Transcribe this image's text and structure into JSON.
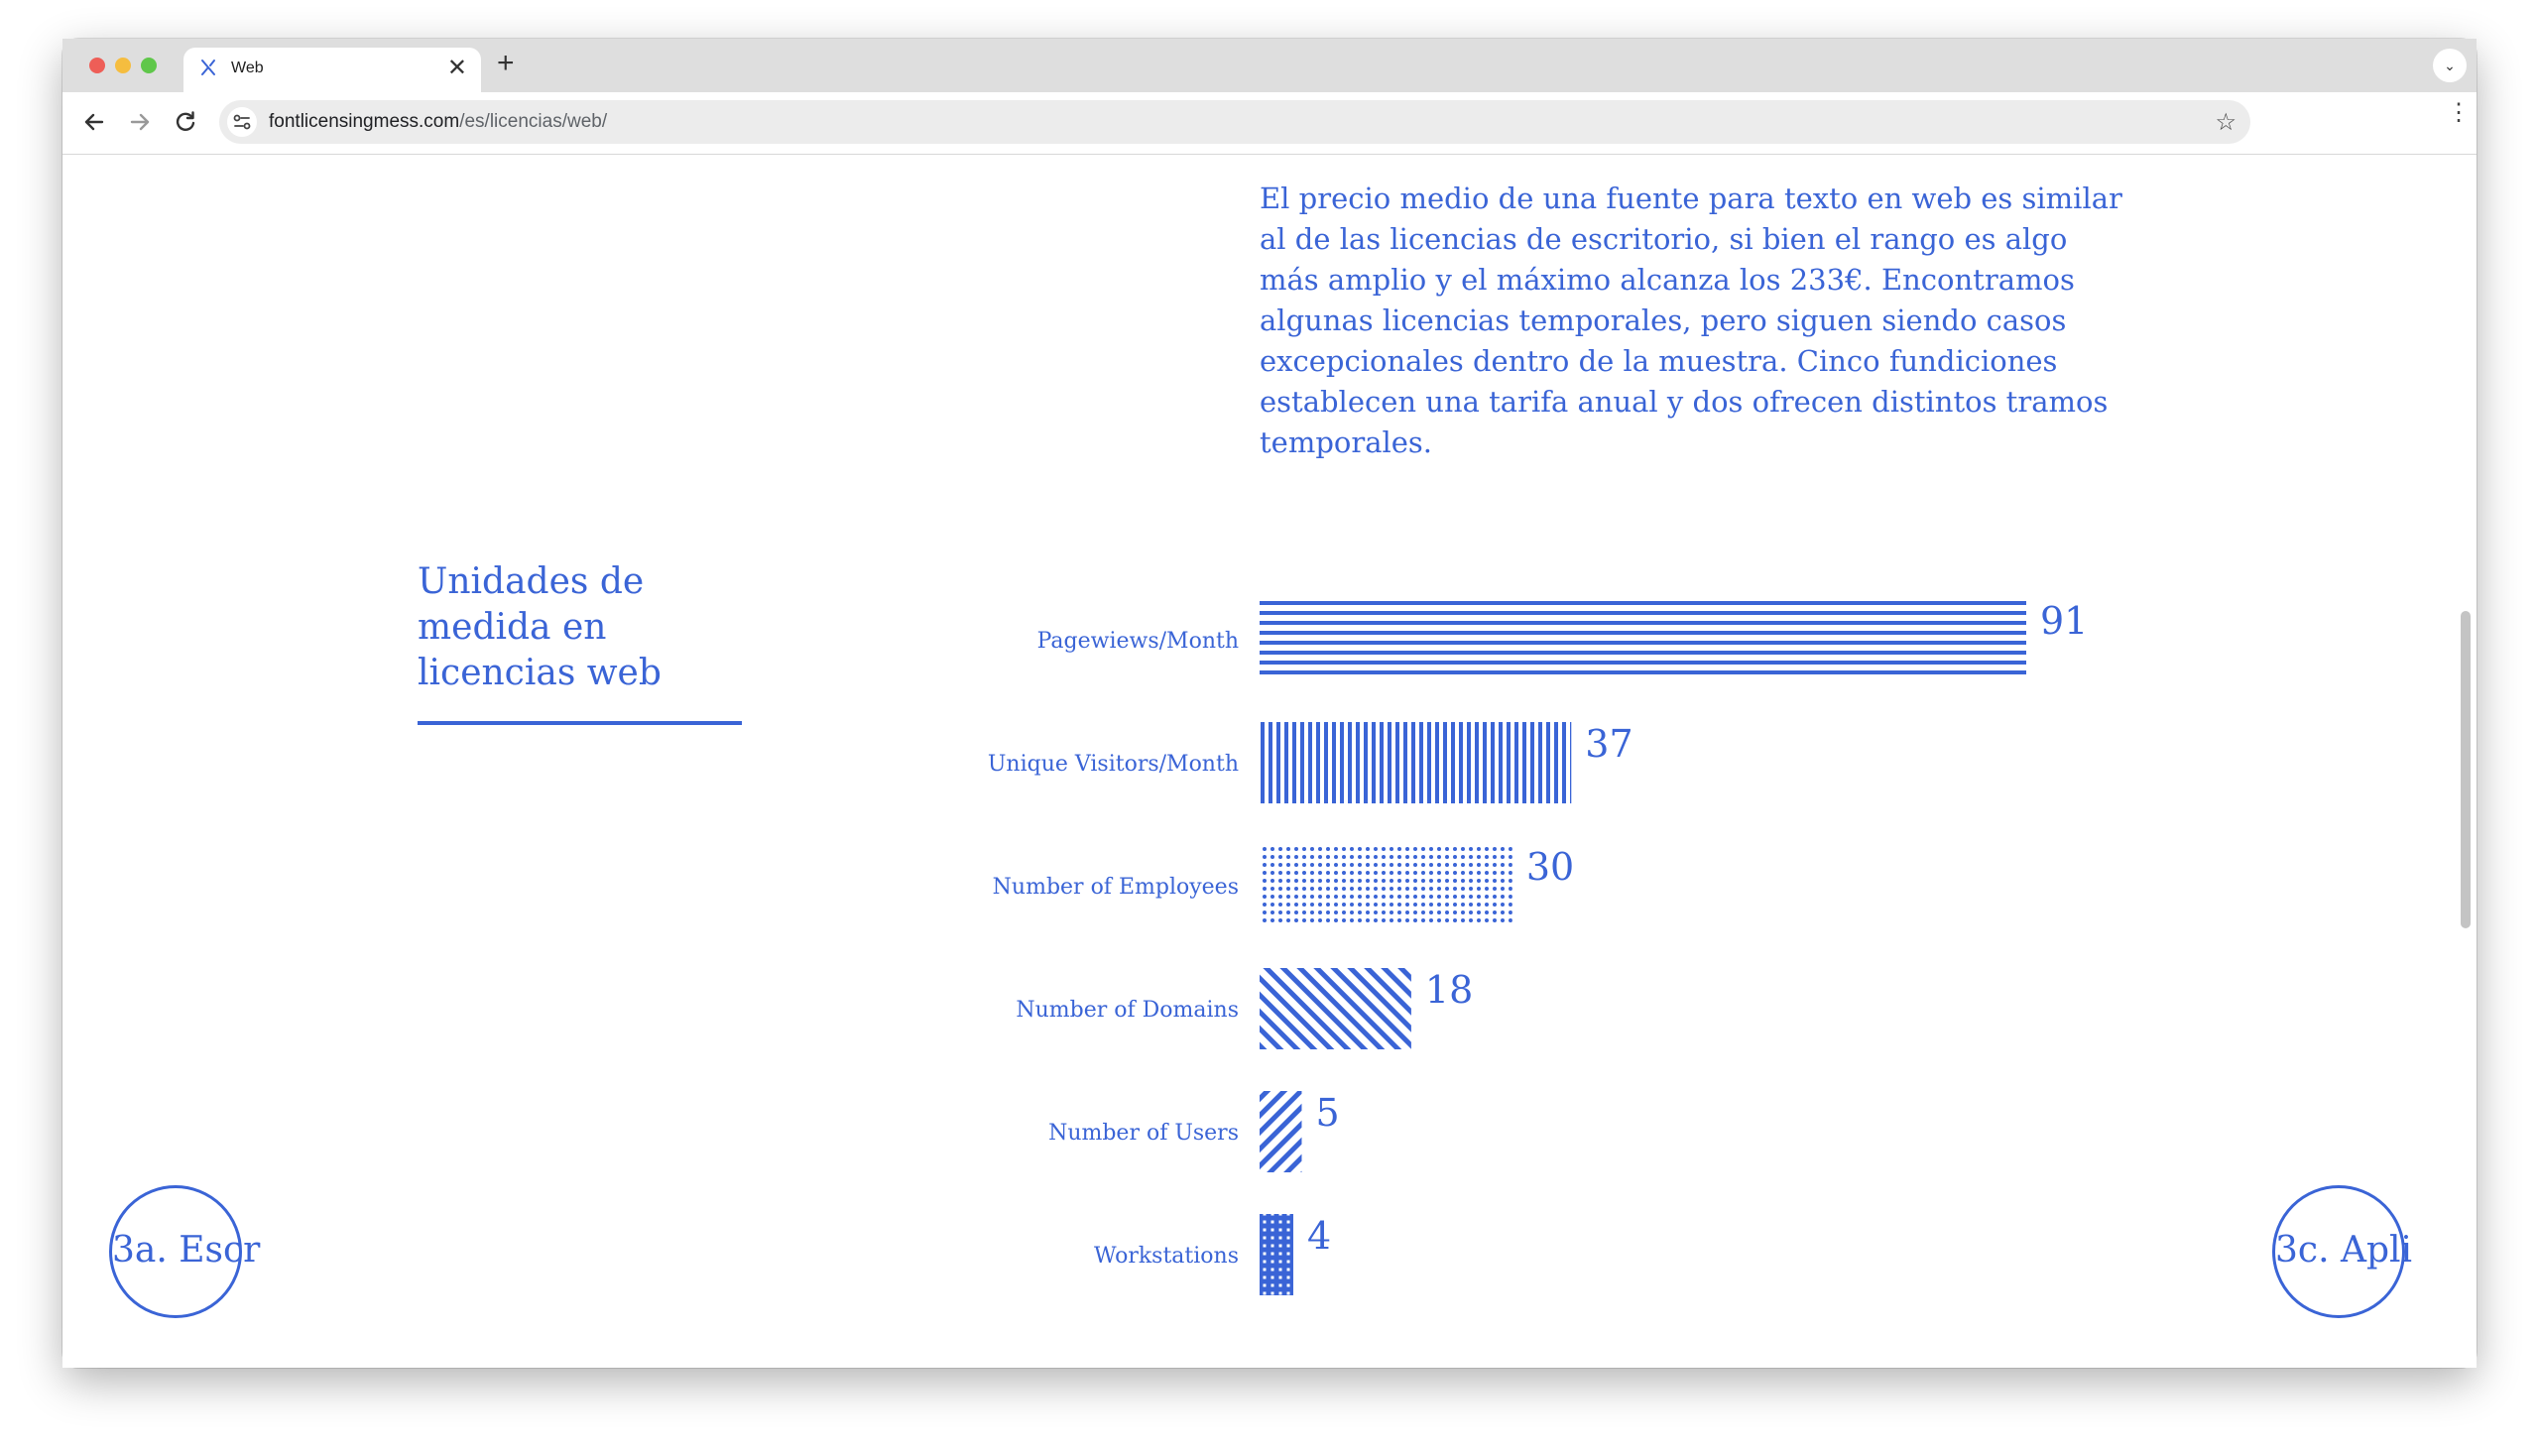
{
  "browser": {
    "tab_title": "Web",
    "tab_close_glyph": "✕",
    "new_tab_glyph": "+",
    "url_host": "fontlicensingmess.com",
    "url_path": "/es/licencias/web/",
    "bookmark_glyph": "☆",
    "menu_glyph": "⋮",
    "tab_menu_glyph": "⌄",
    "icons": [
      "back-arrow-icon",
      "forward-arrow-icon",
      "reload-icon",
      "site-settings-icon",
      "star-icon",
      "kebab-menu-icon"
    ]
  },
  "page": {
    "intro": "El precio medio de una fuente para texto en web es similar al de las licencias de escritorio, si bien el rango es algo más amplio y el máximo alcanza los 233€. Encontramos algunas licencias temporales, pero siguen siendo casos excepcionales dentro de la muestra. Cinco fundiciones establecen una tarifa anual y dos ofrecen distintos tramos temporales.",
    "section_title": "Unidades de medida en licencias web",
    "prev_link": "3a. Escr",
    "next_link": "3c. Apli",
    "accent_color": "#3a64d6"
  },
  "chart_data": {
    "type": "bar",
    "orientation": "horizontal",
    "title": "Unidades de medida en licencias web",
    "categories": [
      "Pagewiews/Month",
      "Unique Visitors/Month",
      "Number of Employees",
      "Number of Domains",
      "Number of Users",
      "Workstations"
    ],
    "values": [
      91,
      37,
      30,
      18,
      5,
      4
    ],
    "patterns": [
      "horizontal-stripes",
      "vertical-stripes",
      "dots",
      "diagonal-stripes",
      "back-diagonal-stripes",
      "grid"
    ],
    "xlim": [
      0,
      91
    ],
    "grid": false,
    "legend": "none",
    "color": "#3a64d6"
  }
}
